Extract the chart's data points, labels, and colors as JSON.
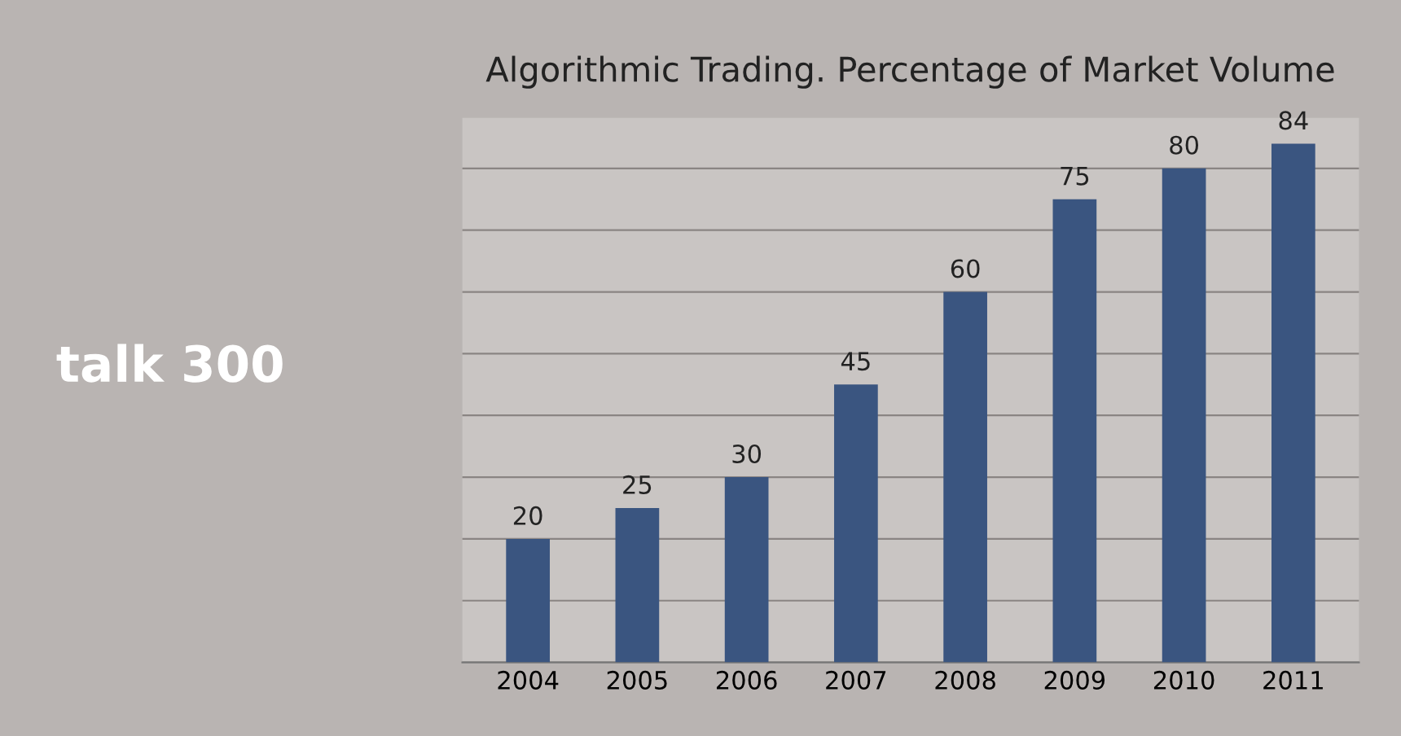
{
  "chart_data": {
    "type": "bar",
    "title": "Algorithmic Trading. Percentage of Market Volume",
    "categories": [
      "2004",
      "2005",
      "2006",
      "2007",
      "2008",
      "2009",
      "2010",
      "2011"
    ],
    "values": [
      20,
      25,
      30,
      45,
      60,
      75,
      80,
      84
    ],
    "color": "#3a5580",
    "data_labels": true,
    "grid": "y",
    "tick_labels": "x",
    "annotations": [
      "talk 300"
    ]
  }
}
